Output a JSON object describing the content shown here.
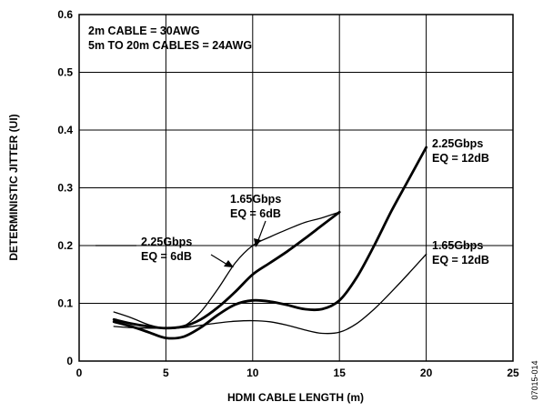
{
  "chart_data": {
    "type": "line",
    "xlabel": "HDMI CABLE LENGTH (m)",
    "ylabel": "DETERMINISTIC JITTER (UI)",
    "xlim": [
      0,
      25
    ],
    "ylim": [
      0,
      0.6
    ],
    "xticks": [
      "0",
      "5",
      "10",
      "15",
      "20",
      "25"
    ],
    "yticks": [
      "0",
      "0.1",
      "0.2",
      "0.3",
      "0.4",
      "0.5",
      "0.6"
    ],
    "grid": true,
    "legend_lines": [
      "2m CABLE = 30AWG",
      "5m TO 20m CABLES = 24AWG"
    ],
    "figure_id": "07015-014",
    "series": [
      {
        "name": "2.25Gbps EQ = 6dB",
        "label_lines": [
          "2.25Gbps",
          "EQ = 6dB"
        ],
        "weight": "thin",
        "x": [
          2,
          3,
          4,
          5,
          6,
          7,
          8,
          9,
          10,
          11,
          12,
          13,
          14,
          15
        ],
        "y": [
          0.085,
          0.075,
          0.063,
          0.057,
          0.06,
          0.085,
          0.125,
          0.17,
          0.2,
          0.215,
          0.228,
          0.24,
          0.248,
          0.258
        ]
      },
      {
        "name": "1.65Gbps EQ = 6dB",
        "label_lines": [
          "1.65Gbps",
          "EQ = 6dB"
        ],
        "weight": "thick",
        "x": [
          2,
          3,
          4,
          5,
          6,
          7,
          8,
          9,
          10,
          11,
          12,
          13,
          14,
          15
        ],
        "y": [
          0.072,
          0.065,
          0.06,
          0.057,
          0.06,
          0.072,
          0.093,
          0.12,
          0.15,
          0.17,
          0.19,
          0.212,
          0.235,
          0.258
        ]
      },
      {
        "name": "2.25Gbps EQ = 12dB",
        "label_lines": [
          "2.25Gbps",
          "EQ = 12dB"
        ],
        "weight": "thick",
        "x": [
          2,
          3,
          4,
          5,
          6,
          7,
          8,
          9,
          10,
          11,
          12,
          13,
          14,
          15,
          16,
          17,
          18,
          19,
          20
        ],
        "y": [
          0.068,
          0.06,
          0.05,
          0.04,
          0.042,
          0.058,
          0.08,
          0.098,
          0.105,
          0.103,
          0.097,
          0.09,
          0.09,
          0.105,
          0.145,
          0.2,
          0.26,
          0.315,
          0.37
        ]
      },
      {
        "name": "1.65Gbps EQ = 12dB",
        "label_lines": [
          "1.65Gbps",
          "EQ = 12dB"
        ],
        "weight": "thin",
        "x": [
          2,
          3,
          4,
          5,
          6,
          7,
          8,
          9,
          10,
          11,
          12,
          13,
          14,
          15,
          16,
          17,
          18,
          19,
          20
        ],
        "y": [
          0.06,
          0.058,
          0.057,
          0.057,
          0.058,
          0.062,
          0.066,
          0.069,
          0.07,
          0.068,
          0.062,
          0.054,
          0.048,
          0.05,
          0.065,
          0.09,
          0.12,
          0.152,
          0.185
        ]
      }
    ]
  }
}
